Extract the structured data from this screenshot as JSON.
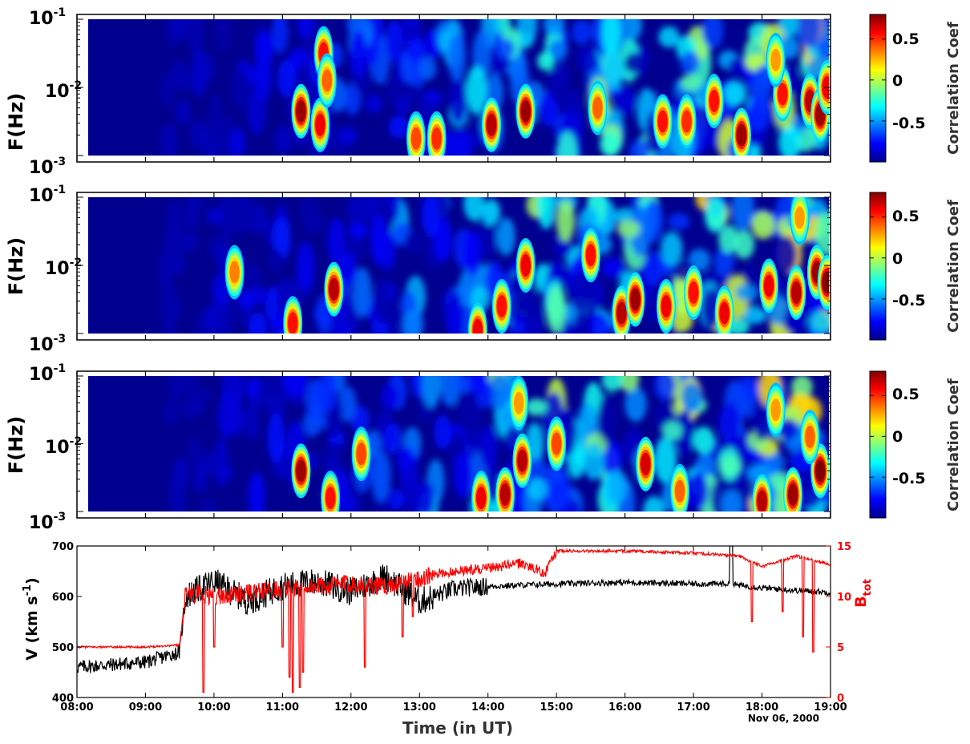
{
  "panels": [
    {
      "id": "panel-1",
      "ylabel": "F(Hz)",
      "ytick_base": "10",
      "yticks_exp": [
        "-3",
        "-2",
        "-1"
      ],
      "colorbar": {
        "label": "Correlation Coef",
        "ticks": [
          "-0.5",
          "0",
          "0.5"
        ],
        "tick_values": [
          -0.5,
          0,
          0.5
        ],
        "range": [
          -1,
          0.8
        ]
      },
      "hotspots": [
        {
          "t": 11.27,
          "logf": -2.35,
          "v": 0.75
        },
        {
          "t": 11.6,
          "logf": -1.5,
          "v": 0.55
        },
        {
          "t": 11.55,
          "logf": -2.55,
          "v": 0.6
        },
        {
          "t": 12.95,
          "logf": -2.75,
          "v": 0.45
        },
        {
          "t": 13.25,
          "logf": -2.75,
          "v": 0.5
        },
        {
          "t": 14.05,
          "logf": -2.55,
          "v": 0.7
        },
        {
          "t": 14.55,
          "logf": -2.35,
          "v": 0.75
        },
        {
          "t": 15.6,
          "logf": -2.3,
          "v": 0.4
        },
        {
          "t": 16.55,
          "logf": -2.5,
          "v": 0.55
        },
        {
          "t": 16.9,
          "logf": -2.5,
          "v": 0.5
        },
        {
          "t": 17.3,
          "logf": -2.2,
          "v": 0.55
        },
        {
          "t": 17.7,
          "logf": -2.7,
          "v": 0.75
        },
        {
          "t": 18.3,
          "logf": -2.1,
          "v": 0.55
        },
        {
          "t": 18.7,
          "logf": -2.2,
          "v": 0.7
        },
        {
          "t": 18.85,
          "logf": -2.4,
          "v": 0.75
        },
        {
          "t": 18.95,
          "logf": -2.0,
          "v": 0.6
        },
        {
          "t": 18.2,
          "logf": -1.6,
          "v": 0.3
        },
        {
          "t": 11.65,
          "logf": -1.9,
          "v": 0.4
        }
      ]
    },
    {
      "id": "panel-2",
      "ylabel": "F(Hz)",
      "ytick_base": "10",
      "yticks_exp": [
        "-3",
        "-2",
        "-1"
      ],
      "colorbar": {
        "label": "Correlation Coef",
        "ticks": [
          "-0.5",
          "0",
          "0.5"
        ],
        "tick_values": [
          -0.5,
          0,
          0.5
        ],
        "range": [
          -1,
          0.8
        ]
      },
      "hotspots": [
        {
          "t": 11.15,
          "logf": -2.85,
          "v": 0.55
        },
        {
          "t": 11.75,
          "logf": -2.35,
          "v": 0.7
        },
        {
          "t": 10.3,
          "logf": -2.1,
          "v": 0.35
        },
        {
          "t": 13.85,
          "logf": -2.95,
          "v": 0.6
        },
        {
          "t": 14.2,
          "logf": -2.6,
          "v": 0.55
        },
        {
          "t": 14.55,
          "logf": -2.0,
          "v": 0.6
        },
        {
          "t": 15.5,
          "logf": -1.85,
          "v": 0.55
        },
        {
          "t": 15.95,
          "logf": -2.7,
          "v": 0.7
        },
        {
          "t": 16.15,
          "logf": -2.5,
          "v": 0.75
        },
        {
          "t": 16.6,
          "logf": -2.6,
          "v": 0.6
        },
        {
          "t": 17.0,
          "logf": -2.4,
          "v": 0.55
        },
        {
          "t": 17.45,
          "logf": -2.7,
          "v": 0.6
        },
        {
          "t": 18.1,
          "logf": -2.3,
          "v": 0.6
        },
        {
          "t": 18.5,
          "logf": -2.4,
          "v": 0.7
        },
        {
          "t": 18.8,
          "logf": -2.1,
          "v": 0.75
        },
        {
          "t": 18.95,
          "logf": -2.25,
          "v": 0.8
        },
        {
          "t": 18.55,
          "logf": -1.3,
          "v": 0.3
        }
      ]
    },
    {
      "id": "panel-3",
      "ylabel": "F(Hz)",
      "ytick_base": "10",
      "yticks_exp": [
        "-3",
        "-2",
        "-1"
      ],
      "colorbar": {
        "label": "Correlation Coef",
        "ticks": [
          "-0.5",
          "0",
          "0.5"
        ],
        "tick_values": [
          -0.5,
          0,
          0.5
        ],
        "range": [
          -1,
          0.8
        ]
      },
      "hotspots": [
        {
          "t": 11.27,
          "logf": -2.4,
          "v": 0.75
        },
        {
          "t": 11.7,
          "logf": -2.8,
          "v": 0.55
        },
        {
          "t": 12.15,
          "logf": -2.15,
          "v": 0.45
        },
        {
          "t": 13.9,
          "logf": -2.8,
          "v": 0.6
        },
        {
          "t": 14.25,
          "logf": -2.75,
          "v": 0.7
        },
        {
          "t": 14.5,
          "logf": -2.25,
          "v": 0.7
        },
        {
          "t": 14.45,
          "logf": -1.4,
          "v": 0.3
        },
        {
          "t": 15.0,
          "logf": -2.0,
          "v": 0.45
        },
        {
          "t": 16.3,
          "logf": -2.3,
          "v": 0.65
        },
        {
          "t": 16.8,
          "logf": -2.7,
          "v": 0.4
        },
        {
          "t": 18.0,
          "logf": -2.85,
          "v": 0.7
        },
        {
          "t": 18.45,
          "logf": -2.75,
          "v": 0.75
        },
        {
          "t": 18.85,
          "logf": -2.4,
          "v": 0.8
        },
        {
          "t": 18.7,
          "logf": -1.9,
          "v": 0.4
        },
        {
          "t": 18.2,
          "logf": -1.5,
          "v": 0.3
        }
      ]
    }
  ],
  "bottom_panel": {
    "ylabel_left": "V (km s",
    "ylabel_left_sup": "-1",
    "ylabel_left_close": ")",
    "ylabel_right": "B",
    "ylabel_right_sub": "tot",
    "yticks_left": [
      400,
      500,
      600,
      700
    ],
    "yticks_right": [
      0,
      5,
      10,
      15
    ],
    "ylim_left": [
      400,
      700
    ],
    "ylim_right": [
      0,
      15
    ],
    "line_colors": {
      "velocity": "#000000",
      "btot": "#ff0000"
    }
  },
  "xaxis": {
    "label": "Time (in UT)",
    "ticks": [
      "08:00",
      "09:00",
      "10:00",
      "11:00",
      "12:00",
      "13:00",
      "14:00",
      "15:00",
      "16:00",
      "17:00",
      "18:00",
      "19:00"
    ],
    "date": "Nov 06, 2000",
    "xlim_hours": [
      8,
      19
    ]
  },
  "chart_data": [
    {
      "type": "heatmap",
      "title": "",
      "xlabel": "",
      "ylabel": "F(Hz)",
      "x_range_hours_ut": [
        8,
        19
      ],
      "y_range_hz": [
        0.001,
        0.1
      ],
      "y_scale": "log",
      "colorbar_label": "Correlation Coef",
      "colorbar_range": [
        -1,
        0.8
      ],
      "colormap": "jet"
    },
    {
      "type": "heatmap",
      "title": "",
      "xlabel": "",
      "ylabel": "F(Hz)",
      "x_range_hours_ut": [
        8,
        19
      ],
      "y_range_hz": [
        0.001,
        0.1
      ],
      "y_scale": "log",
      "colorbar_label": "Correlation Coef",
      "colorbar_range": [
        -1,
        0.8
      ],
      "colormap": "jet"
    },
    {
      "type": "heatmap",
      "title": "",
      "xlabel": "",
      "ylabel": "F(Hz)",
      "x_range_hours_ut": [
        8,
        19
      ],
      "y_range_hz": [
        0.001,
        0.1
      ],
      "y_scale": "log",
      "colorbar_label": "Correlation Coef",
      "colorbar_range": [
        -1,
        0.8
      ],
      "colormap": "jet"
    },
    {
      "type": "line",
      "title": "",
      "xlabel": "Time (in UT)",
      "ylabel": "V (km s-1)",
      "y2label": "Btot",
      "ylim": [
        400,
        700
      ],
      "y2lim": [
        0,
        15
      ],
      "series": [
        {
          "name": "V",
          "axis": "left",
          "color": "#000000",
          "x": [
            "08:00",
            "09:00",
            "09:30",
            "09:35",
            "10:00",
            "10:30",
            "11:00",
            "11:30",
            "12:00",
            "12:30",
            "13:00",
            "13:30",
            "14:00",
            "15:00",
            "16:00",
            "17:00",
            "17:30",
            "18:00",
            "18:30",
            "19:00"
          ],
          "values": [
            460,
            470,
            490,
            600,
            630,
            590,
            620,
            630,
            610,
            640,
            590,
            615,
            620,
            625,
            628,
            625,
            625,
            617,
            612,
            608
          ]
        },
        {
          "name": "B",
          "axis": "right",
          "color": "#ff0000",
          "x": [
            "08:00",
            "09:00",
            "09:30",
            "09:35",
            "10:00",
            "10:30",
            "11:00",
            "11:30",
            "12:00",
            "12:30",
            "13:00",
            "13:30",
            "14:00",
            "14:30",
            "14:50",
            "15:00",
            "16:00",
            "17:00",
            "17:40",
            "18:00",
            "18:30",
            "19:00"
          ],
          "values": [
            5.0,
            5.0,
            5.2,
            10.5,
            10.0,
            10.3,
            10.8,
            11.0,
            11.3,
            11.0,
            11.8,
            12.5,
            12.8,
            13.3,
            12.3,
            14.5,
            14.5,
            14.3,
            14.0,
            13.0,
            14.0,
            13.2
          ]
        }
      ]
    }
  ]
}
